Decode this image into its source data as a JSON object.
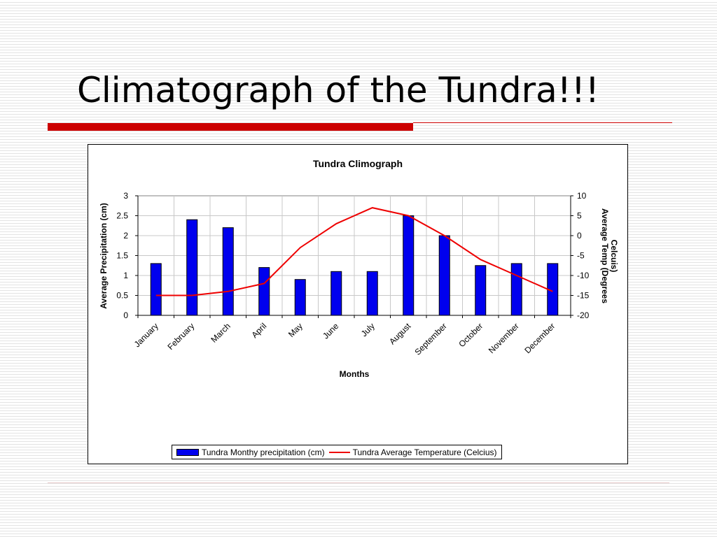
{
  "slide": {
    "title": "Climatograph of the Tundra!!!"
  },
  "colors": {
    "accent_red": "#cc0000",
    "bar_fill": "#0000ee",
    "line_color": "#ee0000"
  },
  "chart_data": {
    "type": "bar",
    "title": "Tundra Climograph",
    "xlabel": "Months",
    "ylabel": "Average Precipitation (cm)",
    "y2label_lines": [
      "Average Temp (Degrees",
      "Celcuis)"
    ],
    "categories": [
      "January",
      "February",
      "March",
      "April",
      "May",
      "June",
      "July",
      "August",
      "September",
      "October",
      "November",
      "December"
    ],
    "ylim": [
      0,
      3
    ],
    "yticks": [
      "0",
      "0.5",
      "1",
      "1.5",
      "2",
      "2.5",
      "3"
    ],
    "y2lim": [
      -20,
      10
    ],
    "y2ticks": [
      "-20",
      "-15",
      "-10",
      "-5",
      "0",
      "5",
      "10"
    ],
    "grid": true,
    "legend_position": "bottom",
    "series": [
      {
        "name": "Tundra Monthy precipitation (cm)",
        "type": "bar",
        "axis": "left",
        "color": "#0000ee",
        "values": [
          1.3,
          2.4,
          2.2,
          1.2,
          0.9,
          1.1,
          1.1,
          2.5,
          2.0,
          1.25,
          1.3,
          1.3
        ]
      },
      {
        "name": "Tundra Average Temperature (Celcius)",
        "type": "line",
        "axis": "right",
        "color": "#ee0000",
        "values": [
          -15,
          -15,
          -14,
          -12,
          -3,
          3,
          7,
          5,
          0,
          -6,
          -10,
          -14
        ]
      }
    ]
  }
}
